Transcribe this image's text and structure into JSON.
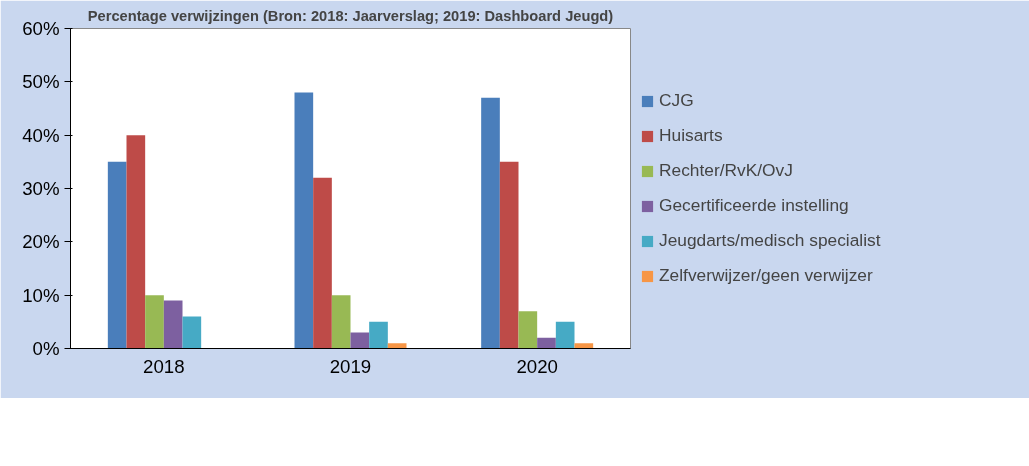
{
  "chart_data": {
    "type": "bar",
    "title": "Percentage verwijzingen (Bron: 2018: Jaarverslag; 2019: Dashboard Jeugd)",
    "categories": [
      "2018",
      "2019",
      "2020"
    ],
    "series": [
      {
        "name": "CJG",
        "color": "#4a7ebb",
        "values": [
          35,
          48,
          47
        ]
      },
      {
        "name": "Huisarts",
        "color": "#be4b48",
        "values": [
          40,
          32,
          35
        ]
      },
      {
        "name": "Rechter/RvK/OvJ",
        "color": "#98b954",
        "values": [
          10,
          10,
          7
        ]
      },
      {
        "name": "Gecertificeerde instelling",
        "color": "#7d60a0",
        "values": [
          9,
          3,
          2
        ]
      },
      {
        "name": "Jeugdarts/medisch specialist",
        "color": "#46aac5",
        "values": [
          6,
          5,
          5
        ]
      },
      {
        "name": "Zelfverwijzer/geen verwijzer",
        "color": "#f79646",
        "values": [
          0,
          1,
          1
        ]
      }
    ],
    "ylim": [
      0,
      60
    ],
    "yticks": [
      {
        "value": 0,
        "label": "0%"
      },
      {
        "value": 10,
        "label": "10%"
      },
      {
        "value": 20,
        "label": "20%"
      },
      {
        "value": 30,
        "label": "30%"
      },
      {
        "value": 40,
        "label": "40%"
      },
      {
        "value": 50,
        "label": "50%"
      },
      {
        "value": 60,
        "label": "60%"
      }
    ],
    "grid": false,
    "legend": "right"
  }
}
